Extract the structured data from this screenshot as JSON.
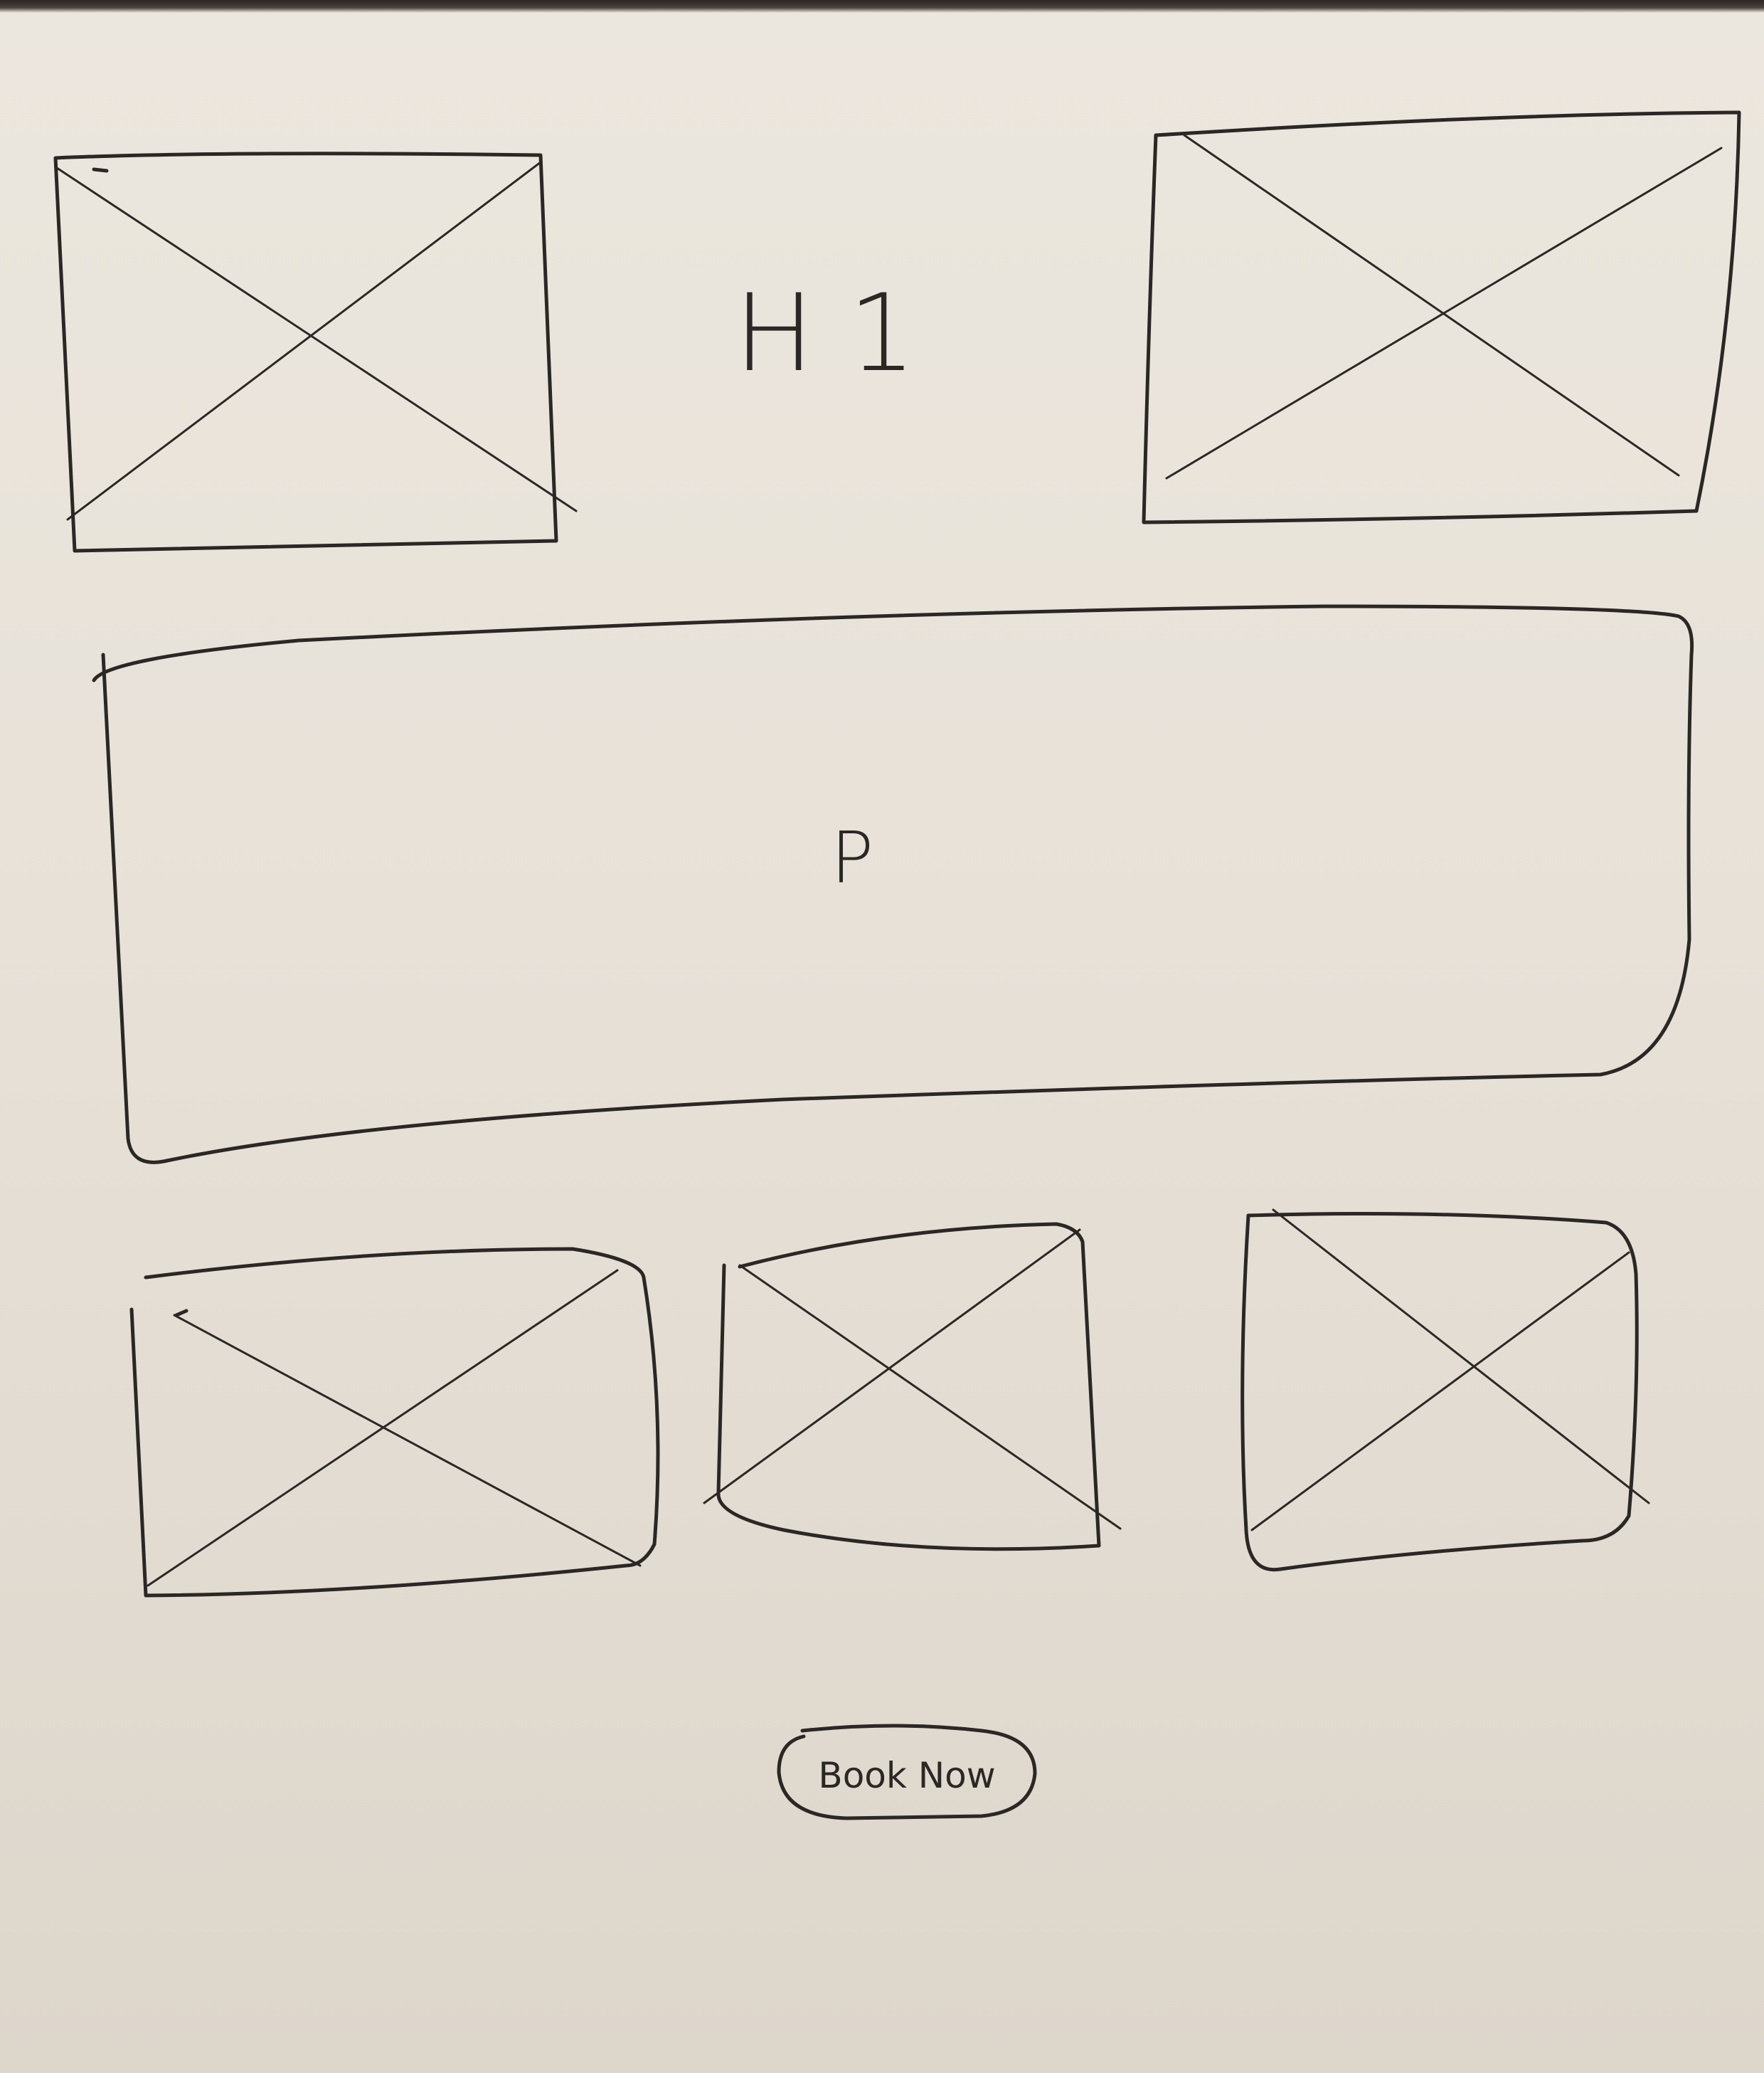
{
  "sketch": {
    "heading_label": "H 1",
    "paragraph_label": "P",
    "button_label": "Book Now"
  },
  "colors": {
    "paper": "#e7e1d8",
    "ink": "#2b2725"
  }
}
